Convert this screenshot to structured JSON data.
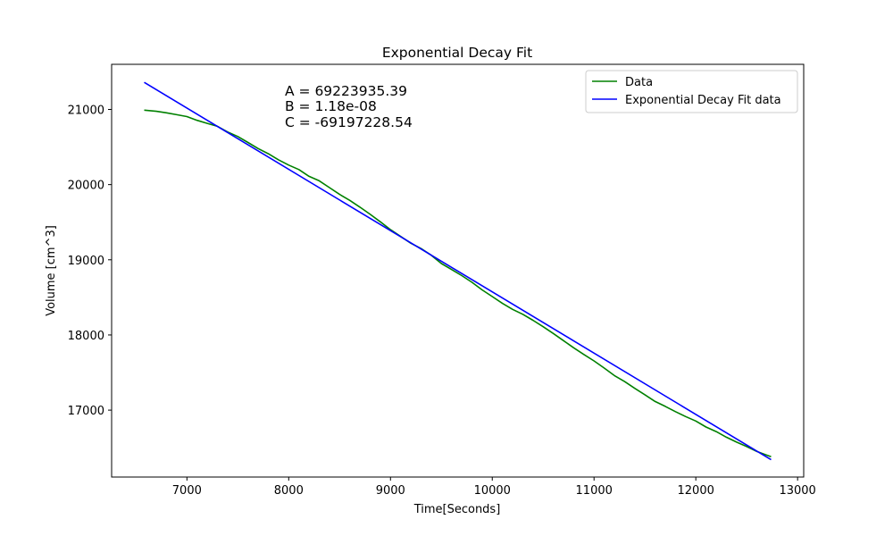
{
  "chart_data": {
    "type": "line",
    "title": "Exponential Decay Fit",
    "xlabel": "Time[Seconds]",
    "ylabel": "Volume [cm^3]",
    "xlim": [
      6260,
      13060
    ],
    "ylim": [
      16110,
      21600
    ],
    "x_ticks": [
      7000,
      8000,
      9000,
      10000,
      11000,
      12000,
      13000
    ],
    "y_ticks": [
      17000,
      18000,
      19000,
      20000,
      21000
    ],
    "x_tick_labels": [
      "7000",
      "8000",
      "9000",
      "10000",
      "11000",
      "12000",
      "13000"
    ],
    "y_tick_labels": [
      "17000",
      "18000",
      "19000",
      "20000",
      "21000"
    ],
    "grid": false,
    "legend_position": "upper right",
    "annotations": [
      "A = 69223935.39",
      "B = 1.18e-08",
      "C = -69197228.54"
    ],
    "series": [
      {
        "name": "Data",
        "color": "#008000",
        "x": [
          6580,
          6700,
          6800,
          6900,
          7000,
          7100,
          7200,
          7300,
          7400,
          7500,
          7600,
          7700,
          7800,
          7900,
          8000,
          8100,
          8200,
          8300,
          8400,
          8500,
          8600,
          8700,
          8800,
          8900,
          9000,
          9100,
          9200,
          9300,
          9400,
          9500,
          9600,
          9700,
          9800,
          9900,
          10000,
          10100,
          10200,
          10300,
          10400,
          10500,
          10600,
          10700,
          10800,
          10900,
          11000,
          11100,
          11200,
          11300,
          11400,
          11500,
          11600,
          11700,
          11800,
          11900,
          12000,
          12100,
          12200,
          12300,
          12400,
          12500,
          12600,
          12740
        ],
        "values": [
          20990,
          20975,
          20955,
          20930,
          20905,
          20855,
          20815,
          20775,
          20700,
          20640,
          20560,
          20480,
          20410,
          20330,
          20260,
          20200,
          20110,
          20050,
          19960,
          19870,
          19790,
          19700,
          19605,
          19505,
          19400,
          19310,
          19220,
          19150,
          19060,
          18950,
          18870,
          18790,
          18700,
          18600,
          18510,
          18420,
          18340,
          18275,
          18195,
          18110,
          18020,
          17925,
          17830,
          17740,
          17655,
          17560,
          17460,
          17380,
          17290,
          17205,
          17115,
          17050,
          16980,
          16915,
          16855,
          16775,
          16715,
          16640,
          16575,
          16515,
          16450,
          16380
        ]
      },
      {
        "name": "Exponential Decay Fit data",
        "color": "#0000ff",
        "x": [
          6580,
          12740
        ],
        "values": [
          21360,
          16340
        ]
      }
    ]
  }
}
